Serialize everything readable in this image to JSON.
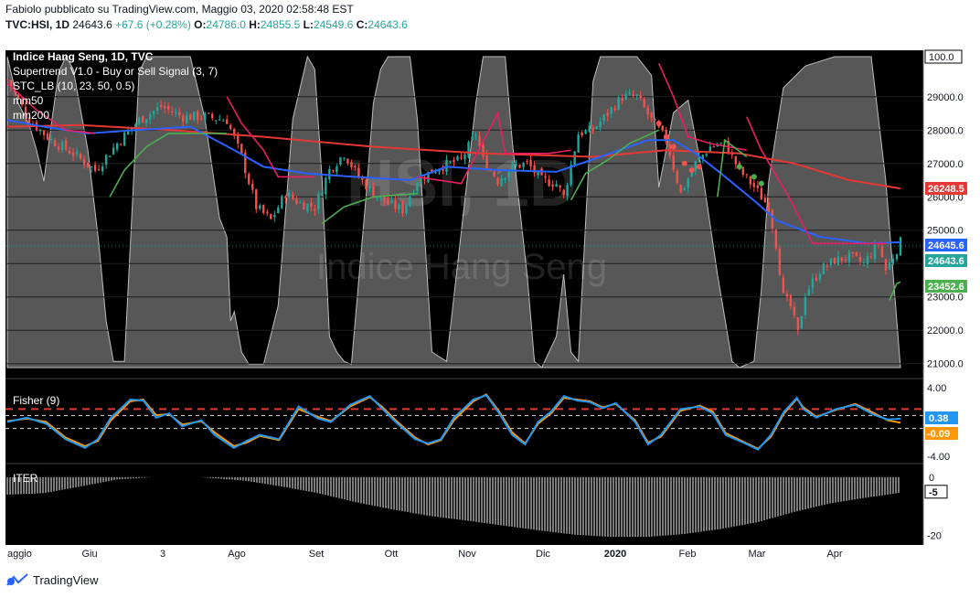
{
  "header": {
    "publish_line": "Fabiolo pubblicato su TradingView.com, Maggio 03, 2020 02:58:48 EST",
    "symbol": "TVC:HSI, 1D",
    "last": "24643.6",
    "change": "+67.6 (+0.28%)",
    "o_label": "O:",
    "o_value": "24786.0",
    "h_label": "H:",
    "h_value": "24855.5",
    "l_label": "L:",
    "l_value": "24549.6",
    "c_label": "C:",
    "c_value": "24643.6"
  },
  "footer": {
    "brand": "TradingView"
  },
  "colors": {
    "bg": "#000000",
    "up": "#26a69a",
    "down": "#ef5350",
    "mm50": "#2962ff",
    "mm200": "#e53935",
    "supertrend_up": "#4caf50",
    "supertrend_down": "#e91e63",
    "stc": "#9e9e9e",
    "fisher": "#2196f3",
    "fisher_trigger": "#ff9800",
    "iter": "#cccccc"
  },
  "chart_data": [
    {
      "type": "candlestick",
      "title": "Indice Hang Seng, 1D, TVC",
      "watermark": [
        "HSI, 1D",
        "Indice Hang Seng"
      ],
      "legend": [
        "Supertrend V1.0 - Buy or Sell Signal (3, 7)",
        "STC_LB (10, 23, 50, 0.5)",
        "mm50",
        "mm200"
      ],
      "x_ticks": [
        "aggio",
        "Giu",
        "3",
        "Ago",
        "Set",
        "Ott",
        "Nov",
        "Dic",
        "2020",
        "Feb",
        "Mar",
        "Apr"
      ],
      "y_ticks": [
        "29000.0",
        "28000.0",
        "27000.0",
        "26000.0",
        "25000.0",
        "24000.0",
        "23000.0",
        "22000.0",
        "21000.0"
      ],
      "y_range": [
        20800,
        30200
      ],
      "stc_top_label": "100.0",
      "price_labels": {
        "mm200": "26248.5",
        "mm50": "24645.6",
        "last": "24643.6",
        "supertrend": "23452.6"
      },
      "mm50": [
        [
          0,
          28300
        ],
        [
          10,
          28100
        ],
        [
          22,
          27900
        ],
        [
          35,
          28000
        ],
        [
          50,
          28100
        ],
        [
          62,
          27400
        ],
        [
          70,
          26900
        ],
        [
          82,
          26700
        ],
        [
          95,
          26600
        ],
        [
          110,
          26500
        ],
        [
          120,
          26900
        ],
        [
          135,
          26800
        ],
        [
          150,
          26750
        ],
        [
          162,
          27200
        ],
        [
          175,
          27700
        ],
        [
          182,
          27700
        ],
        [
          188,
          27300
        ],
        [
          195,
          26700
        ],
        [
          205,
          25800
        ],
        [
          210,
          25300
        ],
        [
          222,
          24800
        ],
        [
          235,
          24600
        ],
        [
          244,
          24640
        ]
      ],
      "mm200": [
        [
          0,
          28100
        ],
        [
          20,
          28150
        ],
        [
          45,
          28000
        ],
        [
          70,
          27800
        ],
        [
          100,
          27500
        ],
        [
          130,
          27300
        ],
        [
          160,
          27200
        ],
        [
          180,
          27400
        ],
        [
          200,
          27300
        ],
        [
          215,
          27000
        ],
        [
          230,
          26500
        ],
        [
          244,
          26250
        ]
      ],
      "supertrend": [
        {
          "dir": "down",
          "pts": [
            [
              0,
              29400
            ],
            [
              8,
              28600
            ],
            [
              16,
              28000
            ],
            [
              24,
              27900
            ]
          ]
        },
        {
          "dir": "up",
          "pts": [
            [
              28,
              26000
            ],
            [
              32,
              26800
            ],
            [
              38,
              27500
            ],
            [
              44,
              27900
            ],
            [
              60,
              27900
            ]
          ]
        },
        {
          "dir": "down",
          "pts": [
            [
              60,
              29000
            ],
            [
              64,
              28200
            ],
            [
              70,
              27400
            ],
            [
              74,
              26600
            ],
            [
              84,
              26600
            ]
          ]
        },
        {
          "dir": "up",
          "pts": [
            [
              86,
              25200
            ],
            [
              92,
              25700
            ],
            [
              100,
              26000
            ],
            [
              112,
              26100
            ]
          ]
        },
        {
          "dir": "down",
          "pts": [
            [
              112,
              26600
            ],
            [
              124,
              26400
            ],
            [
              134,
              28500
            ],
            [
              136,
              27300
            ],
            [
              148,
              27300
            ],
            [
              154,
              27400
            ]
          ]
        },
        {
          "dir": "up",
          "pts": [
            [
              154,
              25900
            ],
            [
              158,
              26700
            ],
            [
              164,
              27100
            ],
            [
              170,
              27600
            ],
            [
              178,
              28000
            ]
          ]
        },
        {
          "dir": "down",
          "pts": [
            [
              178,
              30000
            ],
            [
              182,
              29000
            ],
            [
              186,
              27800
            ],
            [
              192,
              27600
            ],
            [
              202,
              27400
            ]
          ]
        },
        {
          "dir": "up",
          "pts": [
            [
              194,
              26000
            ],
            [
              196,
              27700
            ],
            [
              202,
              27200
            ]
          ]
        },
        {
          "dir": "down",
          "pts": [
            [
              202,
              28400
            ],
            [
              206,
              27400
            ],
            [
              214,
              25900
            ],
            [
              220,
              24600
            ],
            [
              240,
              24600
            ]
          ]
        },
        {
          "dir": "up",
          "pts": [
            [
              241,
              22900
            ],
            [
              243,
              23400
            ],
            [
              244,
              23450
            ]
          ]
        }
      ],
      "signal_dots": [
        [
          178,
          28200
        ],
        [
          180,
          27800
        ],
        [
          182,
          27500
        ],
        [
          185,
          27000
        ],
        [
          187,
          26800
        ],
        [
          189,
          26900
        ],
        [
          200,
          26900
        ],
        [
          204,
          26600
        ],
        [
          206,
          26400
        ]
      ],
      "candles": {
        "count": 245,
        "close_path": [
          [
            0,
            29500
          ],
          [
            6,
            28300
          ],
          [
            12,
            27700
          ],
          [
            18,
            27300
          ],
          [
            24,
            26800
          ],
          [
            30,
            27600
          ],
          [
            36,
            28300
          ],
          [
            42,
            28700
          ],
          [
            48,
            28400
          ],
          [
            54,
            28400
          ],
          [
            60,
            28300
          ],
          [
            64,
            27200
          ],
          [
            68,
            25700
          ],
          [
            72,
            25300
          ],
          [
            76,
            26100
          ],
          [
            80,
            25800
          ],
          [
            84,
            25700
          ],
          [
            88,
            26800
          ],
          [
            92,
            27300
          ],
          [
            96,
            26600
          ],
          [
            100,
            26100
          ],
          [
            104,
            25800
          ],
          [
            108,
            25600
          ],
          [
            112,
            26500
          ],
          [
            118,
            26900
          ],
          [
            124,
            27100
          ],
          [
            128,
            27900
          ],
          [
            130,
            27100
          ],
          [
            134,
            26500
          ],
          [
            138,
            26900
          ],
          [
            142,
            27000
          ],
          [
            146,
            26500
          ],
          [
            150,
            26400
          ],
          [
            152,
            26000
          ],
          [
            156,
            27900
          ],
          [
            160,
            28000
          ],
          [
            164,
            28500
          ],
          [
            168,
            29000
          ],
          [
            172,
            29000
          ],
          [
            176,
            28300
          ],
          [
            180,
            27700
          ],
          [
            184,
            26100
          ],
          [
            188,
            27000
          ],
          [
            192,
            27500
          ],
          [
            196,
            27600
          ],
          [
            200,
            26800
          ],
          [
            204,
            26300
          ],
          [
            208,
            25700
          ],
          [
            210,
            24600
          ],
          [
            212,
            23000
          ],
          [
            214,
            22700
          ],
          [
            216,
            21900
          ],
          [
            218,
            23100
          ],
          [
            222,
            23800
          ],
          [
            226,
            24100
          ],
          [
            230,
            24200
          ],
          [
            234,
            24000
          ],
          [
            238,
            24600
          ],
          [
            240,
            23800
          ],
          [
            244,
            24643
          ]
        ]
      },
      "stc_oscillator": "0-100 cycle oscillator drawn as filled area"
    },
    {
      "type": "line",
      "title": "Fisher (9)",
      "y_ticks": [
        "4.00",
        "-4.00"
      ],
      "value_labels": [
        "0.38",
        "-0.09"
      ],
      "levels": [
        1.5,
        0.75,
        -0.75
      ],
      "fisher": [
        [
          0,
          0
        ],
        [
          6,
          0.5
        ],
        [
          12,
          -0.2
        ],
        [
          18,
          -2
        ],
        [
          24,
          -3
        ],
        [
          28,
          -2
        ],
        [
          32,
          0.5
        ],
        [
          38,
          2.6
        ],
        [
          42,
          2.5
        ],
        [
          46,
          0.5
        ],
        [
          50,
          1
        ],
        [
          54,
          -0.5
        ],
        [
          60,
          0.2
        ],
        [
          64,
          -1.5
        ],
        [
          70,
          -3
        ],
        [
          74,
          -2.2
        ],
        [
          78,
          -1.5
        ],
        [
          84,
          -2
        ],
        [
          90,
          1.8
        ],
        [
          96,
          0.4
        ],
        [
          100,
          0
        ],
        [
          106,
          2
        ],
        [
          112,
          3
        ],
        [
          116,
          1.5
        ],
        [
          120,
          0
        ],
        [
          126,
          -2
        ],
        [
          130,
          -2.5
        ],
        [
          134,
          -2
        ],
        [
          138,
          0.5
        ],
        [
          144,
          2.6
        ],
        [
          148,
          3.1
        ],
        [
          152,
          1
        ],
        [
          156,
          -1.5
        ],
        [
          160,
          -2.6
        ],
        [
          164,
          0
        ],
        [
          168,
          1.2
        ],
        [
          172,
          3
        ],
        [
          176,
          2.5
        ],
        [
          180,
          2.3
        ],
        [
          184,
          1.6
        ],
        [
          188,
          2.2
        ],
        [
          194,
          0
        ],
        [
          198,
          -2.6
        ],
        [
          202,
          -1.5
        ],
        [
          208,
          1.5
        ],
        [
          214,
          1.8
        ],
        [
          218,
          1
        ],
        [
          222,
          -1.5
        ],
        [
          228,
          -2.5
        ],
        [
          232,
          -3.2
        ],
        [
          236,
          -1.5
        ],
        [
          240,
          1.2
        ],
        [
          244,
          2.8
        ],
        [
          246,
          1.5
        ],
        [
          250,
          0.5
        ],
        [
          256,
          1.5
        ],
        [
          262,
          2
        ],
        [
          268,
          0.8
        ],
        [
          272,
          0.3
        ],
        [
          276,
          0.38
        ]
      ],
      "trigger": [
        [
          0,
          0.1
        ],
        [
          6,
          0.4
        ],
        [
          12,
          0
        ],
        [
          18,
          -1.8
        ],
        [
          24,
          -2.8
        ],
        [
          28,
          -2.2
        ],
        [
          32,
          0.2
        ],
        [
          38,
          2.4
        ],
        [
          42,
          2.6
        ],
        [
          46,
          0.8
        ],
        [
          50,
          0.9
        ],
        [
          54,
          -0.3
        ],
        [
          60,
          0.1
        ],
        [
          64,
          -1.2
        ],
        [
          70,
          -2.8
        ],
        [
          74,
          -2.4
        ],
        [
          78,
          -1.6
        ],
        [
          84,
          -2.1
        ],
        [
          90,
          1.5
        ],
        [
          96,
          0.6
        ],
        [
          100,
          0.1
        ],
        [
          106,
          1.8
        ],
        [
          112,
          2.9
        ],
        [
          116,
          1.7
        ],
        [
          120,
          0.2
        ],
        [
          126,
          -1.8
        ],
        [
          130,
          -2.6
        ],
        [
          134,
          -2.1
        ],
        [
          138,
          0.2
        ],
        [
          144,
          2.4
        ],
        [
          148,
          3.2
        ],
        [
          152,
          1.2
        ],
        [
          156,
          -1.2
        ],
        [
          160,
          -2.5
        ],
        [
          164,
          -0.2
        ],
        [
          168,
          1
        ],
        [
          172,
          2.8
        ],
        [
          176,
          2.6
        ],
        [
          180,
          2.4
        ],
        [
          184,
          1.7
        ],
        [
          188,
          2.1
        ],
        [
          194,
          0.2
        ],
        [
          198,
          -2.4
        ],
        [
          202,
          -1.7
        ],
        [
          208,
          1.3
        ],
        [
          214,
          1.9
        ],
        [
          218,
          1.2
        ],
        [
          222,
          -1.3
        ],
        [
          228,
          -2.4
        ],
        [
          232,
          -3.1
        ],
        [
          236,
          -1.7
        ],
        [
          240,
          1
        ],
        [
          244,
          2.7
        ],
        [
          246,
          1.7
        ],
        [
          250,
          0.6
        ],
        [
          256,
          1.4
        ],
        [
          262,
          2.1
        ],
        [
          268,
          1
        ],
        [
          272,
          0.2
        ],
        [
          276,
          -0.09
        ]
      ],
      "y_range": [
        -4.3,
        4.3
      ]
    },
    {
      "type": "bar",
      "title": "ITER",
      "y_ticks": [
        "0",
        "-5",
        "-20"
      ],
      "value_label": "-5",
      "y_range": [
        -22,
        1.2
      ],
      "profile": [
        [
          0,
          -6
        ],
        [
          40,
          -5.5
        ],
        [
          80,
          -3.2
        ],
        [
          120,
          -0.8
        ],
        [
          160,
          0
        ],
        [
          210,
          0
        ],
        [
          260,
          -1.2
        ],
        [
          300,
          -3.2
        ],
        [
          340,
          -5.5
        ],
        [
          380,
          -8.5
        ],
        [
          420,
          -11
        ],
        [
          460,
          -13.2
        ],
        [
          500,
          -14.8
        ],
        [
          540,
          -16.5
        ],
        [
          580,
          -18.2
        ],
        [
          620,
          -19.7
        ],
        [
          660,
          -20.5
        ],
        [
          700,
          -20.5
        ],
        [
          740,
          -19.5
        ],
        [
          780,
          -17.8
        ],
        [
          820,
          -15.5
        ],
        [
          860,
          -12
        ],
        [
          900,
          -9
        ],
        [
          940,
          -7
        ],
        [
          985,
          -5
        ]
      ]
    }
  ]
}
